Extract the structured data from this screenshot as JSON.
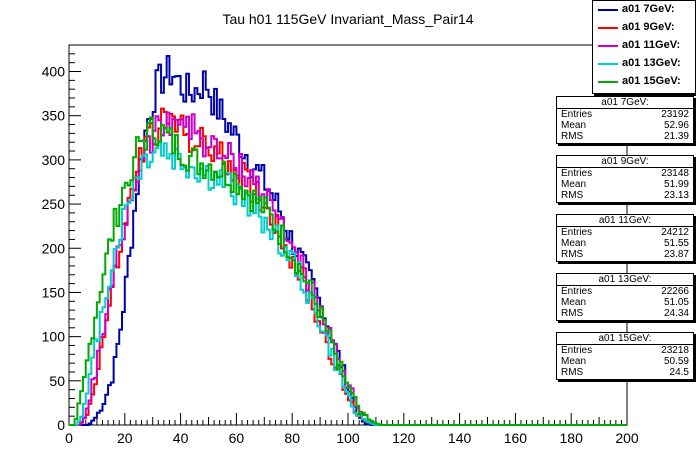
{
  "chart_data": {
    "type": "histogram",
    "title": "Tau h01 115GeV Invariant_Mass_Pair14",
    "xlabel": "",
    "ylabel": "",
    "xlim": [
      0,
      200
    ],
    "ylim": [
      0,
      430
    ],
    "x_ticks": [
      "0",
      "20",
      "40",
      "60",
      "80",
      "100",
      "120",
      "140",
      "160",
      "180",
      "200"
    ],
    "y_ticks": [
      "0",
      "50",
      "100",
      "150",
      "200",
      "250",
      "300",
      "350",
      "400"
    ],
    "bin_width": 1,
    "series": [
      {
        "name": "a01 7GeV:",
        "color": "#0000aa",
        "x": [
          7,
          10,
          13,
          16,
          19,
          22,
          25,
          28,
          31,
          34,
          37,
          40,
          43,
          46,
          49,
          52,
          55,
          58,
          61,
          64,
          67,
          70,
          73,
          76,
          79,
          82,
          85,
          88,
          91,
          94,
          97,
          100,
          102,
          104,
          106,
          108
        ],
        "y": [
          0,
          10,
          30,
          60,
          120,
          200,
          285,
          340,
          380,
          395,
          400,
          385,
          375,
          380,
          390,
          365,
          350,
          335,
          320,
          305,
          290,
          275,
          260,
          240,
          215,
          195,
          175,
          155,
          130,
          100,
          75,
          45,
          25,
          10,
          2,
          0
        ]
      },
      {
        "name": "a01 9GeV:",
        "color": "#ff0000",
        "x": [
          4,
          7,
          10,
          13,
          16,
          19,
          22,
          25,
          28,
          31,
          34,
          37,
          40,
          43,
          46,
          49,
          52,
          55,
          58,
          61,
          64,
          67,
          70,
          73,
          76,
          79,
          82,
          85,
          88,
          91,
          94,
          97,
          100,
          103,
          106,
          109,
          111
        ],
        "y": [
          0,
          15,
          60,
          110,
          160,
          210,
          255,
          295,
          320,
          335,
          340,
          345,
          335,
          330,
          320,
          315,
          310,
          300,
          295,
          285,
          275,
          265,
          250,
          235,
          215,
          195,
          175,
          155,
          130,
          105,
          80,
          55,
          30,
          15,
          5,
          1,
          0
        ]
      },
      {
        "name": "a01 11GeV:",
        "color": "#cc00cc",
        "x": [
          4,
          7,
          10,
          13,
          16,
          19,
          22,
          25,
          28,
          31,
          34,
          37,
          40,
          43,
          46,
          49,
          52,
          55,
          58,
          61,
          64,
          67,
          70,
          73,
          76,
          79,
          82,
          85,
          88,
          91,
          94,
          97,
          100,
          103,
          106,
          109,
          111
        ],
        "y": [
          0,
          20,
          70,
          120,
          165,
          210,
          255,
          290,
          315,
          330,
          340,
          350,
          345,
          340,
          330,
          320,
          310,
          305,
          300,
          295,
          285,
          275,
          260,
          245,
          230,
          210,
          190,
          170,
          145,
          120,
          95,
          70,
          45,
          25,
          10,
          2,
          0
        ]
      },
      {
        "name": "a01 13GeV:",
        "color": "#00cccc",
        "x": [
          3,
          6,
          9,
          12,
          15,
          18,
          21,
          24,
          27,
          30,
          33,
          36,
          39,
          42,
          45,
          48,
          51,
          54,
          57,
          60,
          63,
          66,
          69,
          72,
          75,
          78,
          81,
          84,
          87,
          90,
          93,
          96,
          99,
          102,
          105,
          108,
          110
        ],
        "y": [
          0,
          25,
          80,
          130,
          175,
          215,
          250,
          280,
          300,
          310,
          315,
          305,
          300,
          295,
          290,
          285,
          280,
          275,
          270,
          265,
          255,
          245,
          235,
          225,
          210,
          195,
          180,
          160,
          140,
          115,
          90,
          65,
          40,
          20,
          8,
          2,
          0
        ]
      },
      {
        "name": "a01 15GeV:",
        "color": "#00aa00",
        "x": [
          2,
          5,
          8,
          11,
          14,
          17,
          20,
          23,
          26,
          29,
          32,
          35,
          38,
          41,
          44,
          47,
          50,
          53,
          56,
          59,
          62,
          65,
          68,
          71,
          74,
          77,
          80,
          83,
          86,
          89,
          92,
          95,
          98,
          101,
          104,
          107,
          110,
          112
        ],
        "y": [
          0,
          40,
          100,
          150,
          195,
          235,
          270,
          300,
          320,
          330,
          335,
          325,
          315,
          310,
          300,
          295,
          295,
          290,
          285,
          280,
          270,
          260,
          250,
          240,
          225,
          210,
          195,
          175,
          155,
          135,
          110,
          85,
          60,
          35,
          18,
          7,
          2,
          0
        ]
      }
    ],
    "stats": [
      {
        "title": "a01 7GeV:",
        "entries": "23192",
        "mean": "52.96",
        "rms": "21.39"
      },
      {
        "title": "a01 9GeV:",
        "entries": "23148",
        "mean": "51.99",
        "rms": "23.13"
      },
      {
        "title": "a01 11GeV:",
        "entries": "24212",
        "mean": "51.55",
        "rms": "23.87"
      },
      {
        "title": "a01 13GeV:",
        "entries": "22266",
        "mean": "51.05",
        "rms": "24.34"
      },
      {
        "title": "a01 15GeV:",
        "entries": "23218",
        "mean": "50.59",
        "rms": "24.5"
      }
    ],
    "stats_labels": {
      "entries": "Entries",
      "mean": "Mean",
      "rms": "RMS"
    },
    "legend_position": "top-right",
    "grid": false
  }
}
